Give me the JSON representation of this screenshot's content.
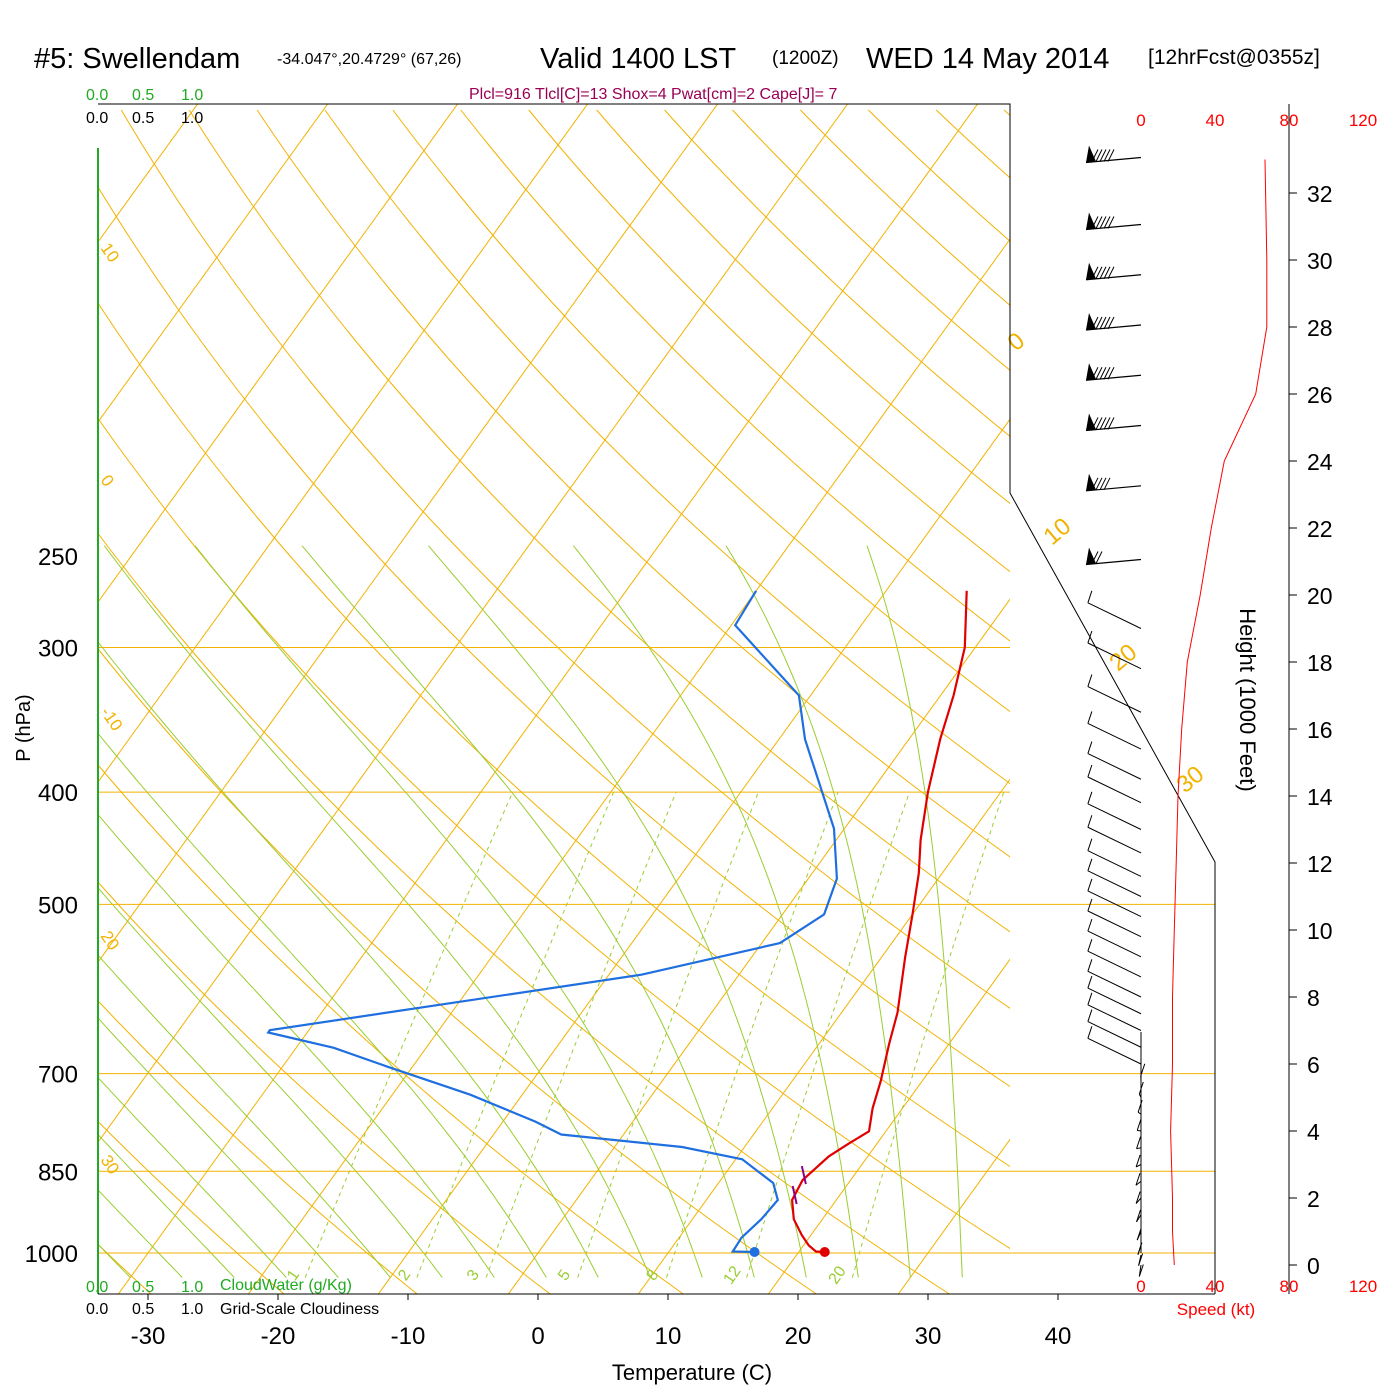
{
  "header": {
    "station": "#5: Swellendam",
    "location": "-34.047°,20.4729° (67,26)",
    "valid": "Valid 1400 LST",
    "zulu": "(1200Z)",
    "date": "WED 14 May 2014",
    "forecast": "[12hrFcst@0355z]",
    "indices": "Plcl=916 Tlcl[C]=13 Shox=4 Pwat[cm]=2 Cape[J]= 7"
  },
  "colors": {
    "isotherm": "#f2b200",
    "dry_adiabat": "#f2b200",
    "moist_adiabat": "#9acd32",
    "mixing_ratio": "#9acd32",
    "temperature": "#e00000",
    "dewpoint": "#1f6fe0",
    "cloud_axis": "#22aa22",
    "speed": "#ff0000",
    "indices": "#990055"
  },
  "cloud_scales": {
    "top_green": [
      "0.0",
      "0.5",
      "1.0"
    ],
    "top_black": [
      "0.0",
      "0.5",
      "1.0"
    ],
    "bottom_green": [
      "0.0",
      "0.5",
      "1.0"
    ],
    "bottom_black": [
      "0.0",
      "0.5",
      "1.0"
    ],
    "cloudwater_label": "CloudWater (g/Kg)",
    "cloudiness_label": "Grid-Scale Cloudiness"
  },
  "chart_data": {
    "type": "line",
    "title": "",
    "xlabel": "Temperature (C)",
    "ylabel": "P (hPa)",
    "xticks": [
      "-30",
      "-20",
      "-10",
      "0",
      "10",
      "20",
      "30",
      "40"
    ],
    "yticks": [
      "250",
      "300",
      "400",
      "500",
      "700",
      "850",
      "1000"
    ],
    "pressure_levels": [
      250,
      300,
      400,
      500,
      700,
      850,
      1000
    ],
    "xlim": [
      -33,
      36
    ],
    "y_scale": "log-pressure",
    "series": [
      {
        "key": "temperature",
        "points": [
          [
            -3.8,
            268
          ],
          [
            -0.8,
            300
          ],
          [
            1,
            330
          ],
          [
            2.4,
            360
          ],
          [
            4.4,
            400
          ],
          [
            6.5,
            440
          ],
          [
            8.2,
            470
          ],
          [
            10,
            510
          ],
          [
            11.8,
            555
          ],
          [
            14.3,
            620
          ],
          [
            15.4,
            660
          ],
          [
            16.8,
            710
          ],
          [
            17.7,
            750
          ],
          [
            18.7,
            785
          ],
          [
            17.8,
            805
          ],
          [
            17,
            825
          ],
          [
            16.3,
            865
          ],
          [
            16.6,
            900
          ],
          [
            17.8,
            935
          ],
          [
            19.3,
            965
          ],
          [
            20.4,
            985
          ],
          [
            21.3,
            997
          ],
          [
            22,
            998
          ]
        ]
      },
      {
        "key": "dewpoint",
        "points": [
          [
            -20,
            268
          ],
          [
            -19.7,
            287
          ],
          [
            -10.9,
            330
          ],
          [
            -8,
            360
          ],
          [
            -0.8,
            430
          ],
          [
            2.2,
            475
          ],
          [
            3.2,
            510
          ],
          [
            1.4,
            540
          ],
          [
            -7.5,
            575
          ],
          [
            -33,
            642
          ],
          [
            -33,
            645
          ],
          [
            -27.1,
            665
          ],
          [
            -22,
            690
          ],
          [
            -14,
            730
          ],
          [
            -7.5,
            770
          ],
          [
            -4.8,
            790
          ],
          [
            5.2,
            810
          ],
          [
            10.5,
            830
          ],
          [
            14.2,
            870
          ],
          [
            15.5,
            900
          ],
          [
            15.3,
            935
          ],
          [
            14.8,
            970
          ],
          [
            14.9,
            997
          ],
          [
            16.6,
            998
          ]
        ]
      }
    ],
    "surface_temperature": [
      22,
      998
    ],
    "surface_dewpoint": [
      16.6,
      998
    ],
    "lcl_marks": [
      [
        16.4,
        865
      ],
      [
        16.8,
        900
      ]
    ],
    "isotherm_labels": [
      "30",
      "20",
      "10",
      "0",
      "-10",
      "-20",
      "-30"
    ],
    "dry_adiabat_labels": [
      "10",
      "0",
      "-10",
      "20",
      "30"
    ],
    "adiabat_labels_right": [
      "0",
      "10",
      "20",
      "30"
    ],
    "mixing_ratio_labels": [
      "1",
      "2",
      "3",
      "5",
      "8",
      "12",
      "20"
    ],
    "height_axis": {
      "label": "Height (1000 Feet)",
      "ticks": [
        "0",
        "2",
        "4",
        "6",
        "8",
        "10",
        "12",
        "14",
        "16",
        "18",
        "20",
        "22",
        "24",
        "26",
        "28",
        "30",
        "32"
      ]
    },
    "speed_axis": {
      "label": "Speed (kt)",
      "ticks": [
        "0",
        "40",
        "80",
        "120"
      ]
    },
    "wind_speed_kt": [
      [
        18,
        0
      ],
      [
        17,
        1
      ],
      [
        17,
        2
      ],
      [
        16,
        4
      ],
      [
        17,
        6
      ],
      [
        17,
        8
      ],
      [
        18,
        10
      ],
      [
        19,
        12
      ],
      [
        20,
        14
      ],
      [
        22,
        16
      ],
      [
        25,
        18
      ],
      [
        32,
        20
      ],
      [
        38,
        22
      ],
      [
        45,
        24
      ],
      [
        62,
        26
      ],
      [
        68,
        28
      ],
      [
        68,
        30
      ],
      [
        67,
        33
      ]
    ],
    "wind_barbs": [
      {
        "h": 33,
        "kt": 55
      },
      {
        "h": 31,
        "kt": 55
      },
      {
        "h": 29.5,
        "kt": 55
      },
      {
        "h": 28,
        "kt": 55
      },
      {
        "h": 26.5,
        "kt": 55
      },
      {
        "h": 25,
        "kt": 55
      },
      {
        "h": 23.2,
        "kt": 45
      },
      {
        "h": 21,
        "kt": 25
      },
      {
        "h": 19,
        "kt": 40
      },
      {
        "h": 17.8,
        "kt": 35
      },
      {
        "h": 16.5,
        "kt": 25
      },
      {
        "h": 15.4,
        "kt": 20
      },
      {
        "h": 14.5,
        "kt": 20
      },
      {
        "h": 13.8,
        "kt": 15
      },
      {
        "h": 13,
        "kt": 15
      },
      {
        "h": 12.3,
        "kt": 15
      },
      {
        "h": 11.6,
        "kt": 15
      },
      {
        "h": 11,
        "kt": 15
      },
      {
        "h": 10.4,
        "kt": 15
      },
      {
        "h": 9.8,
        "kt": 15
      },
      {
        "h": 9.2,
        "kt": 15
      },
      {
        "h": 8.6,
        "kt": 15
      },
      {
        "h": 8,
        "kt": 15
      },
      {
        "h": 7.5,
        "kt": 15
      },
      {
        "h": 7,
        "kt": 15
      },
      {
        "h": 6.5,
        "kt": 15
      },
      {
        "h": 6,
        "kt": 15
      },
      {
        "h": 5.5,
        "kt": 15
      },
      {
        "h": 5,
        "kt": 15
      },
      {
        "h": 4.5,
        "kt": 15
      },
      {
        "h": 4,
        "kt": 15
      },
      {
        "h": 3.5,
        "kt": 15
      },
      {
        "h": 3,
        "kt": 15
      },
      {
        "h": 2.5,
        "kt": 15
      },
      {
        "h": 2,
        "kt": 15
      },
      {
        "h": 1.5,
        "kt": 15
      },
      {
        "h": 1,
        "kt": 15
      },
      {
        "h": 0.6,
        "kt": 15
      },
      {
        "h": 0.3,
        "kt": 15
      },
      {
        "h": 0,
        "kt": 15
      }
    ]
  }
}
